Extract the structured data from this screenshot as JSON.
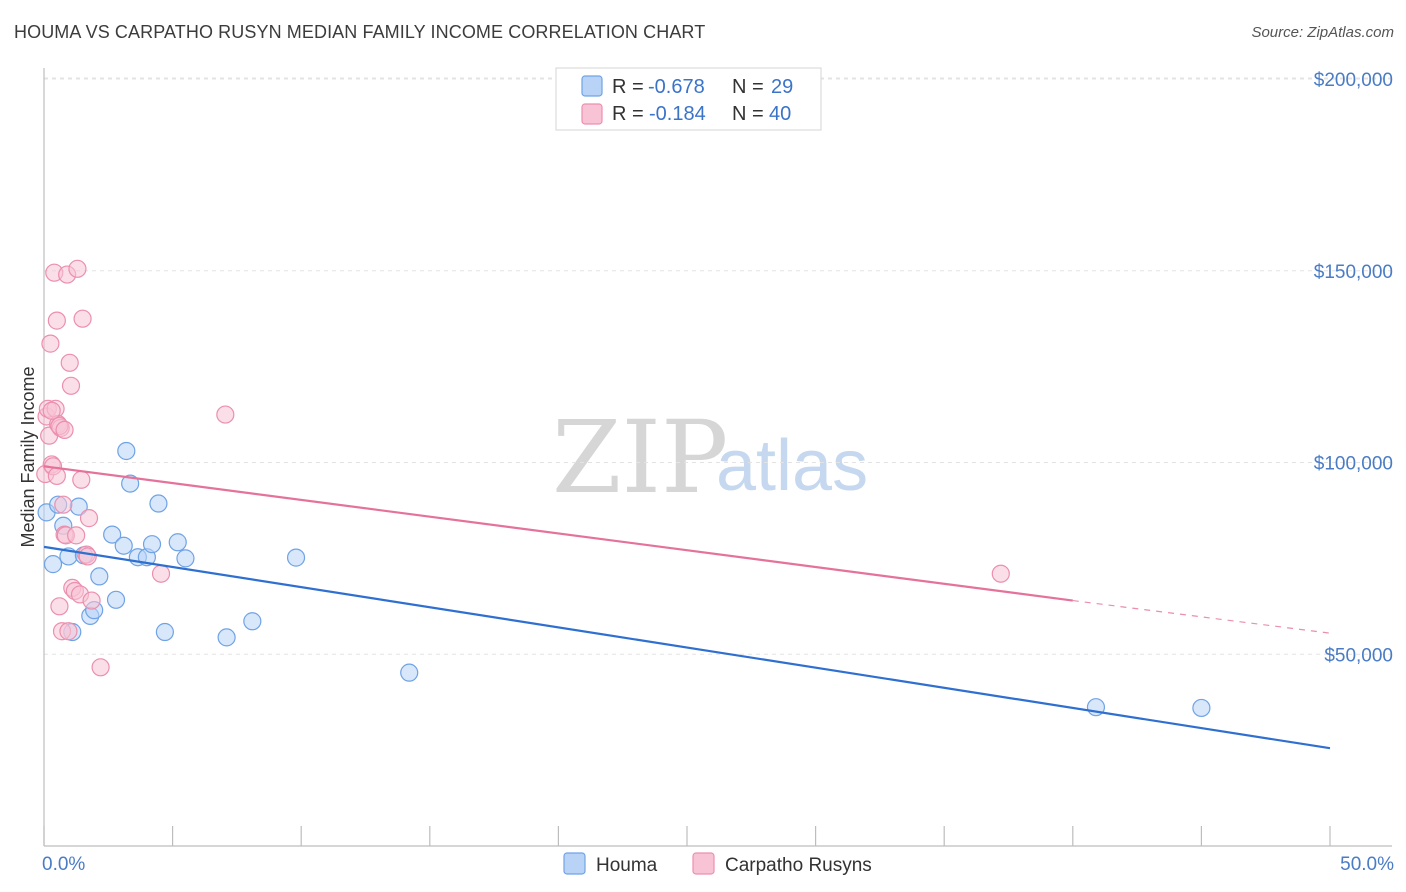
{
  "chart_data": {
    "type": "scatter",
    "title": "HOUMA VS CARPATHO RUSYN MEDIAN FAMILY INCOME CORRELATION CHART",
    "source": "Source: ZipAtlas.com",
    "ylabel": "Median Family Income",
    "xlabel": "",
    "xlim": [
      0,
      50
    ],
    "ylim": [
      0,
      205000
    ],
    "x_tick_labels": [
      "0.0%",
      "50.0%"
    ],
    "y_ticks": [
      {
        "value": 50000,
        "label": "$50,000"
      },
      {
        "value": 100000,
        "label": "$100,000"
      },
      {
        "value": 150000,
        "label": "$150,000"
      },
      {
        "value": 200000,
        "label": "$200,000"
      }
    ],
    "legend": {
      "rows": [
        {
          "r_label": "R =",
          "r_value": "-0.678",
          "n_label": "N =",
          "n_value": "29"
        },
        {
          "r_label": "R =",
          "r_value": "-0.184",
          "n_label": "N =",
          "n_value": "40"
        }
      ]
    },
    "watermark": {
      "zip": "ZIP",
      "atlas": "atlas"
    },
    "series": [
      {
        "name": "Houma",
        "color": "#6fa3e6",
        "fill": "#b8d3f5",
        "line_color": "#2f6fd0",
        "trend": {
          "x0": 0,
          "y0": 78000,
          "x1": 50,
          "y1": 25500
        },
        "points": [
          [
            0.1,
            87000
          ],
          [
            0.35,
            73500
          ],
          [
            0.55,
            89000
          ],
          [
            0.75,
            83500
          ],
          [
            0.95,
            75500
          ],
          [
            1.1,
            55800
          ],
          [
            1.35,
            88500
          ],
          [
            1.55,
            75800
          ],
          [
            1.8,
            60000
          ],
          [
            1.95,
            61500
          ],
          [
            2.15,
            70300
          ],
          [
            2.65,
            81200
          ],
          [
            2.8,
            64200
          ],
          [
            3.1,
            78300
          ],
          [
            3.2,
            103000
          ],
          [
            3.35,
            94500
          ],
          [
            3.65,
            75300
          ],
          [
            4.0,
            75300
          ],
          [
            4.2,
            78700
          ],
          [
            4.45,
            89300
          ],
          [
            4.7,
            55800
          ],
          [
            5.2,
            79200
          ],
          [
            5.5,
            75000
          ],
          [
            7.1,
            54400
          ],
          [
            8.1,
            58600
          ],
          [
            9.8,
            75200
          ],
          [
            14.2,
            45200
          ],
          [
            40.9,
            36200
          ],
          [
            45.0,
            36000
          ]
        ]
      },
      {
        "name": "Carpatho Rusyns",
        "color": "#ec8fae",
        "fill": "#f8c4d5",
        "line_color": "#e4729a",
        "trend": {
          "x0": 0,
          "y0": 99000,
          "x1": 40,
          "y1": 64000
        },
        "trend_dash": {
          "x0": 40,
          "y0": 64000,
          "x1": 50,
          "y1": 55500
        },
        "points": [
          [
            0.05,
            97000
          ],
          [
            0.1,
            112000
          ],
          [
            0.15,
            114000
          ],
          [
            0.2,
            107000
          ],
          [
            0.25,
            131000
          ],
          [
            0.3,
            99500
          ],
          [
            0.35,
            99000
          ],
          [
            0.4,
            149500
          ],
          [
            0.45,
            114000
          ],
          [
            0.5,
            137000
          ],
          [
            0.55,
            110000
          ],
          [
            0.6,
            62500
          ],
          [
            0.65,
            109000
          ],
          [
            0.7,
            56000
          ],
          [
            0.75,
            89000
          ],
          [
            0.8,
            81200
          ],
          [
            0.85,
            81000
          ],
          [
            0.9,
            149000
          ],
          [
            0.95,
            56000
          ],
          [
            1.0,
            126000
          ],
          [
            1.05,
            120000
          ],
          [
            1.1,
            67300
          ],
          [
            1.2,
            66500
          ],
          [
            1.25,
            81000
          ],
          [
            1.3,
            150500
          ],
          [
            1.4,
            65600
          ],
          [
            1.45,
            95500
          ],
          [
            1.5,
            137500
          ],
          [
            1.65,
            76000
          ],
          [
            1.7,
            75500
          ],
          [
            1.75,
            85500
          ],
          [
            1.85,
            64000
          ],
          [
            2.2,
            46600
          ],
          [
            4.55,
            71000
          ],
          [
            7.05,
            112500
          ],
          [
            37.2,
            71000
          ],
          [
            0.3,
            113500
          ],
          [
            0.5,
            96500
          ],
          [
            0.6,
            109500
          ],
          [
            0.8,
            108500
          ]
        ]
      }
    ]
  }
}
